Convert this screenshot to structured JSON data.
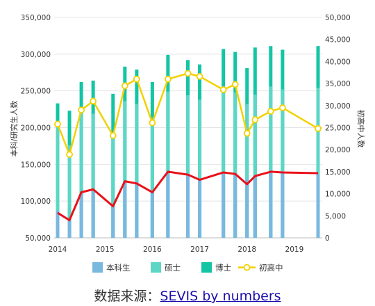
{
  "chart_data": {
    "type": "bar",
    "x_tick_labels": [
      "2014",
      "2015",
      "2016",
      "2017",
      "2018",
      "2019"
    ],
    "ylabel_left": "本科/研究生人数",
    "ylabel_right": "初高中人数",
    "left_axis": {
      "ylim": [
        50000,
        350000
      ],
      "ticks": [
        "350,000",
        "300,000",
        "250,000",
        "200,000",
        "150,000",
        "100,000",
        "50,000"
      ]
    },
    "right_axis": {
      "ylim": [
        0,
        50000
      ],
      "ticks": [
        "50,000",
        "45,000",
        "40,000",
        "35,000",
        "30,000",
        "25,000",
        "20,000",
        "15,000",
        "10,000",
        "5,000",
        "0"
      ]
    },
    "legend": [
      {
        "name": "本科生",
        "color": "#7ab8e0"
      },
      {
        "name": "硕士",
        "color": "#5dd6c5"
      },
      {
        "name": "博士",
        "color": "#13c5a4"
      },
      {
        "name": "初高中",
        "color": "#f2d100"
      }
    ],
    "bars": {
      "dates": [
        2014.0,
        2014.25,
        2014.5,
        2014.75,
        2015.17,
        2015.42,
        2015.67,
        2016.0,
        2016.33,
        2016.75,
        2017.0,
        2017.5,
        2017.75,
        2018.0,
        2018.17,
        2018.5,
        2018.75,
        2019.5
      ],
      "series": [
        {
          "name": "本科生",
          "values": [
            87000,
            73000,
            111000,
            116000,
            92000,
            126000,
            126000,
            113000,
            140000,
            136000,
            130000,
            138000,
            137000,
            130000,
            135000,
            139000,
            138000,
            137000
          ]
        },
        {
          "name": "硕士",
          "values": [
            205000,
            176000,
            224000,
            219000,
            193000,
            236000,
            232000,
            214000,
            249000,
            244000,
            238000,
            250000,
            248000,
            232000,
            245000,
            256000,
            252000,
            254000
          ]
        },
        {
          "name": "博士",
          "values": [
            233000,
            223000,
            262000,
            264000,
            246000,
            283000,
            279000,
            262000,
            299000,
            292000,
            286000,
            307000,
            303000,
            281000,
            309000,
            311000,
            306000,
            311000
          ]
        }
      ]
    },
    "lines": [
      {
        "name": "初高中",
        "axis": "right",
        "color": "#f2d100",
        "markers": true,
        "x": [
          2014.0,
          2014.25,
          2014.5,
          2014.75,
          2015.17,
          2015.42,
          2015.67,
          2016.0,
          2016.33,
          2016.75,
          2017.0,
          2017.5,
          2017.75,
          2018.0,
          2018.17,
          2018.5,
          2018.75,
          2019.5
        ],
        "y": [
          25800,
          18900,
          29000,
          31000,
          23200,
          34500,
          36000,
          26100,
          36000,
          37300,
          36600,
          33600,
          34800,
          23700,
          26800,
          28700,
          29500,
          24800
        ]
      },
      {
        "axis": "left",
        "color": "#e8121a",
        "markers": false,
        "x": [
          2014.0,
          2014.25,
          2014.5,
          2014.75,
          2015.17,
          2015.42,
          2015.67,
          2016.0,
          2016.33,
          2016.75,
          2017.0,
          2017.5,
          2017.75,
          2018.0,
          2018.17,
          2018.5,
          2018.75,
          2019.5
        ],
        "y": [
          84000,
          74000,
          112000,
          116000,
          93000,
          127000,
          124000,
          112000,
          140000,
          136000,
          129000,
          139000,
          137000,
          123000,
          134000,
          140000,
          139000,
          138000
        ]
      }
    ]
  },
  "source": {
    "prefix": "数据来源：",
    "link_text": "SEVIS by numbers"
  }
}
